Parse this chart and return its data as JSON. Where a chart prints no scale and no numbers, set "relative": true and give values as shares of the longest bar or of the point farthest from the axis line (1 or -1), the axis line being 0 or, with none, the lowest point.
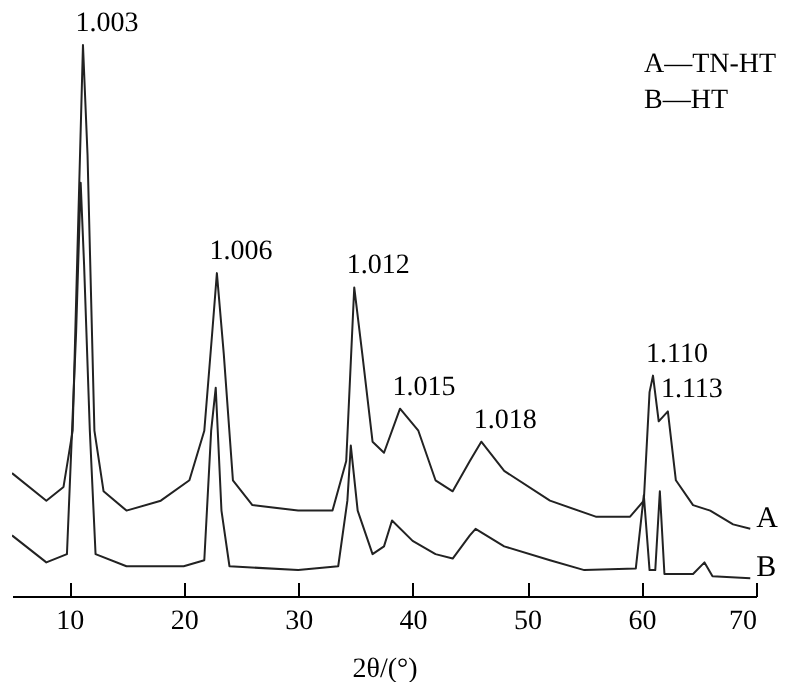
{
  "chart_data": {
    "type": "line",
    "relative": true,
    "xlabel": "2θ/(°)",
    "xlim": [
      5,
      70
    ],
    "xticks": [
      10,
      20,
      30,
      40,
      50,
      60,
      70
    ],
    "annotations": [
      "A—TN-HT",
      "B—HT",
      {
        "text": "1.003",
        "x": 11.2,
        "y": 1.0
      },
      {
        "text": "1.006",
        "x": 22.9,
        "y": 0.586
      },
      {
        "text": "1.012",
        "x": 34.9,
        "y": 0.56
      },
      {
        "text": "1.015",
        "x": 38.9,
        "y": 0.34
      },
      {
        "text": "1.018",
        "x": 46,
        "y": 0.28
      },
      {
        "text": "1.110",
        "x": 61,
        "y": 0.4
      },
      {
        "text": "1.113",
        "x": 62.3,
        "y": 0.335
      }
    ],
    "series": [
      {
        "name": "A",
        "color": "#222222",
        "x": [
          5,
          8,
          9.5,
          10.3,
          10.8,
          11.2,
          11.6,
          12.2,
          13,
          15,
          18,
          20.5,
          21.8,
          22.5,
          22.9,
          23.5,
          24.3,
          26,
          30,
          33,
          34.2,
          34.9,
          35.6,
          36.5,
          37.5,
          38.9,
          40.5,
          42,
          43.5,
          45,
          46,
          48,
          52,
          56,
          59,
          60.2,
          60.7,
          61,
          61.5,
          62.3,
          63,
          64.5,
          66,
          68,
          69.5
        ],
        "values": [
          0.223,
          0.173,
          0.198,
          0.3,
          0.69,
          1.0,
          0.8,
          0.3,
          0.19,
          0.155,
          0.173,
          0.21,
          0.3,
          0.48,
          0.586,
          0.44,
          0.21,
          0.165,
          0.155,
          0.155,
          0.245,
          0.56,
          0.44,
          0.28,
          0.26,
          0.34,
          0.3,
          0.21,
          0.19,
          0.245,
          0.28,
          0.227,
          0.173,
          0.144,
          0.144,
          0.173,
          0.37,
          0.4,
          0.317,
          0.335,
          0.21,
          0.165,
          0.155,
          0.13,
          0.122
        ]
      },
      {
        "name": "B",
        "color": "#222222",
        "x": [
          5,
          8,
          9.8,
          10.6,
          11.0,
          11.3,
          11.8,
          12.3,
          15,
          20,
          21.8,
          22.4,
          22.8,
          23.3,
          24,
          30,
          33.5,
          34.3,
          34.6,
          35.2,
          36.5,
          37.5,
          38.2,
          40,
          42,
          43.5,
          45,
          45.5,
          48,
          52,
          55,
          59.5,
          60.2,
          60.7,
          61.2,
          61.6,
          62,
          64.5,
          65.5,
          66.2,
          69.5
        ],
        "values": [
          0.11,
          0.061,
          0.076,
          0.478,
          0.75,
          0.6,
          0.3,
          0.076,
          0.054,
          0.054,
          0.065,
          0.3,
          0.378,
          0.155,
          0.054,
          0.047,
          0.054,
          0.173,
          0.273,
          0.155,
          0.076,
          0.09,
          0.137,
          0.1,
          0.076,
          0.068,
          0.11,
          0.122,
          0.09,
          0.065,
          0.047,
          0.05,
          0.183,
          0.047,
          0.047,
          0.19,
          0.04,
          0.04,
          0.061,
          0.036,
          0.032
        ]
      }
    ]
  }
}
